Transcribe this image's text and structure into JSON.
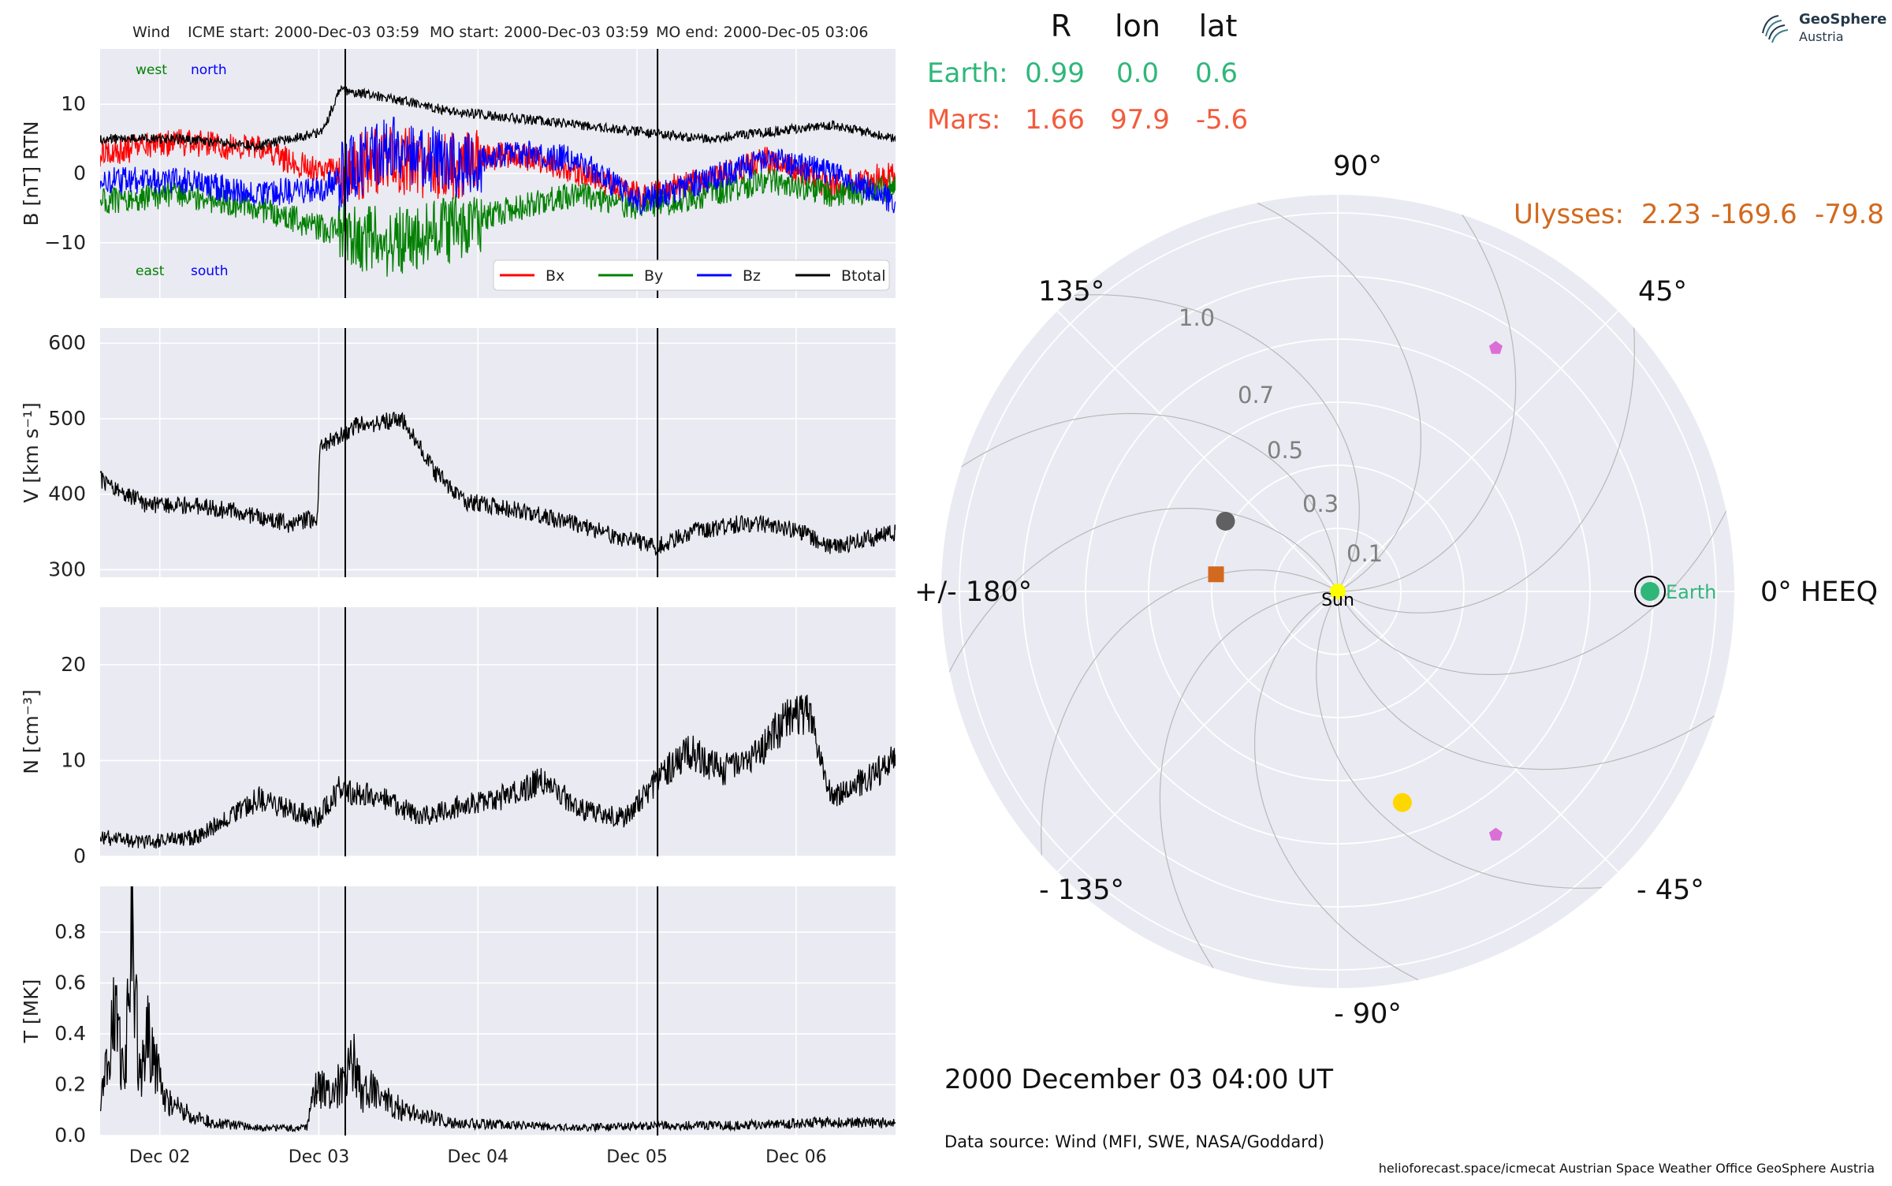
{
  "header": {
    "spacecraft": "Wind",
    "icme_start": "ICME start: 2000-Dec-03 03:59",
    "mo_start": "MO start: 2000-Dec-03 03:59",
    "mo_end": "MO end: 2000-Dec-05 03:06"
  },
  "logo": {
    "title": "GeoSphere",
    "subtitle": "Austria"
  },
  "footer": {
    "timestamp": "2000 December 03  04:00 UT",
    "data_source": "Data source: Wind (MFI, SWE, NASA/Goddard)",
    "credits": "helioforecast.space/icmecat   Austrian Space Weather Office   GeoSphere Austria"
  },
  "positions_table": {
    "headers": [
      "R",
      "lon",
      "lat"
    ],
    "rows": [
      {
        "name": "Earth:",
        "r": "0.99",
        "lon": "0.0",
        "lat": "0.6",
        "color": "#2fb77a"
      },
      {
        "name": "Mars:",
        "r": "1.66",
        "lon": "97.9",
        "lat": "-5.6",
        "color": "#f25c3d"
      }
    ],
    "ulysses": {
      "name": "Ulysses:",
      "r": "2.23",
      "lon": "-169.6",
      "lat": "-79.8",
      "color": "#d2691e"
    }
  },
  "colors": {
    "plot_bg": "#eaeaf2",
    "grid": "#ffffff",
    "bx": "#ff0000",
    "by": "#008000",
    "bz": "#0000ff",
    "btotal": "#000000",
    "earth": "#2fb77a",
    "mars_marker": "#d2691e",
    "sun": "#ffff00",
    "pentagon": "#da70d6",
    "yellow_marker": "#ffd700",
    "grey_marker": "#606060"
  },
  "chart_data": [
    {
      "type": "line",
      "panel": "magnetic_field",
      "ylabel": "B [nT] RTN",
      "ylim": [
        -18,
        18
      ],
      "yticks": [
        10,
        0,
        -10
      ],
      "ytick_labels": [
        "10",
        "0",
        "−10"
      ],
      "xlim_days": [
        "2000-12-01T15:00",
        "2000-12-06T15:00"
      ],
      "events_x": [
        "2000-12-03T03:59",
        "2000-12-05T03:06"
      ],
      "corner_labels": {
        "top_left": "west",
        "top_right": "north",
        "bottom_left": "east",
        "bottom_right": "south"
      },
      "legend": [
        "Bx",
        "By",
        "Bz",
        "Btotal"
      ],
      "series": [
        {
          "name": "Bx",
          "x_days": [
            0,
            0.5,
            1.0,
            1.4,
            1.8,
            2.2,
            2.6,
            3.0,
            3.4,
            3.8,
            4.2,
            4.6,
            5.0
          ],
          "values": [
            3,
            4.5,
            3.5,
            0,
            2,
            1,
            3,
            0,
            -3,
            -1,
            2,
            -2,
            0
          ]
        },
        {
          "name": "By",
          "x_days": [
            0,
            0.5,
            1.0,
            1.4,
            1.8,
            2.2,
            2.6,
            3.0,
            3.4,
            3.8,
            4.2,
            4.6,
            5.0
          ],
          "values": [
            -4,
            -3,
            -5,
            -8,
            -10,
            -8,
            -5,
            -3,
            -5,
            -3,
            -1,
            -3,
            -2
          ]
        },
        {
          "name": "Bz",
          "x_days": [
            0,
            0.5,
            1.0,
            1.4,
            1.8,
            2.2,
            2.6,
            3.0,
            3.4,
            3.8,
            4.2,
            4.6,
            5.0
          ],
          "values": [
            -1,
            -1,
            -3,
            -2,
            4,
            1,
            3,
            2,
            -4,
            -1,
            2,
            0,
            -4
          ]
        },
        {
          "name": "Btotal",
          "x_days": [
            0,
            0.5,
            1.0,
            1.4,
            1.5,
            1.8,
            2.2,
            2.6,
            3.0,
            3.4,
            3.8,
            4.2,
            4.6,
            5.0
          ],
          "values": [
            5,
            5,
            4,
            6,
            12,
            11,
            9,
            8,
            7,
            6,
            5,
            6,
            7,
            5
          ]
        }
      ]
    },
    {
      "type": "line",
      "panel": "speed",
      "ylabel": "V [km s⁻¹]",
      "ylim": [
        290,
        620
      ],
      "yticks": [
        600,
        500,
        400,
        300
      ],
      "series": [
        {
          "name": "V",
          "x_days": [
            0,
            0.3,
            0.6,
            0.9,
            1.2,
            1.37,
            1.38,
            1.6,
            1.9,
            2.1,
            2.3,
            2.6,
            3.0,
            3.3,
            3.5,
            3.7,
            4.0,
            4.2,
            4.4,
            4.6,
            4.8,
            5.0
          ],
          "values": [
            420,
            385,
            385,
            375,
            360,
            370,
            460,
            490,
            500,
            430,
            390,
            380,
            360,
            340,
            330,
            350,
            360,
            360,
            350,
            330,
            340,
            350
          ]
        }
      ]
    },
    {
      "type": "line",
      "panel": "density",
      "ylabel": "N [cm⁻³]",
      "ylim": [
        0,
        26
      ],
      "yticks": [
        20,
        10,
        0
      ],
      "series": [
        {
          "name": "N",
          "x_days": [
            0,
            0.3,
            0.6,
            0.8,
            1.0,
            1.2,
            1.37,
            1.5,
            1.8,
            2.0,
            2.2,
            2.5,
            2.8,
            3.0,
            3.3,
            3.5,
            3.7,
            3.9,
            4.1,
            4.3,
            4.45,
            4.6,
            4.8,
            5.0
          ],
          "values": [
            2,
            1.5,
            2,
            4,
            6,
            5,
            4,
            7,
            6,
            4,
            5,
            6,
            8,
            5,
            4,
            8,
            11,
            9,
            10,
            14,
            15,
            6,
            8,
            10
          ]
        }
      ]
    },
    {
      "type": "line",
      "panel": "temperature",
      "ylabel": "T [MK]",
      "ylim": [
        0,
        0.98
      ],
      "yticks": [
        0.8,
        0.6,
        0.4,
        0.2,
        0.0
      ],
      "ytick_labels": [
        "0.8",
        "0.6",
        "0.4",
        "0.2",
        "0.0"
      ],
      "xtick_labels": [
        "Dec 02",
        "Dec 03",
        "Dec 04",
        "Dec 05",
        "Dec 06"
      ],
      "series": [
        {
          "name": "T",
          "x_days": [
            0,
            0.1,
            0.15,
            0.2,
            0.25,
            0.3,
            0.4,
            0.5,
            0.7,
            1.0,
            1.3,
            1.35,
            1.45,
            1.6,
            1.65,
            1.7,
            1.9,
            2.2,
            2.6,
            3.0,
            3.5,
            4.0,
            4.5,
            5.0
          ],
          "values": [
            0.1,
            0.5,
            0.2,
            0.8,
            0.2,
            0.4,
            0.15,
            0.1,
            0.05,
            0.03,
            0.03,
            0.2,
            0.15,
            0.3,
            0.15,
            0.18,
            0.1,
            0.05,
            0.04,
            0.03,
            0.04,
            0.04,
            0.05,
            0.05
          ]
        }
      ]
    },
    {
      "type": "scatter",
      "panel": "polar_positions",
      "radial_ticks": [
        "0.1",
        "0.3",
        "0.5",
        "0.7",
        "1.0"
      ],
      "angle_labels": [
        "0° HEEQ",
        "45°",
        "90°",
        "135°",
        "+/- 180°",
        "- 135°",
        "- 90°",
        "- 45°"
      ],
      "bodies": [
        {
          "name": "Sun",
          "r": 0.0,
          "lon_deg": 0,
          "marker": "circle"
        },
        {
          "name": "Earth",
          "r": 0.99,
          "lon_deg": 0.0,
          "marker": "circle"
        },
        {
          "name": "",
          "r": 1.66,
          "lon_deg": 97.9,
          "marker": "circle"
        },
        {
          "name": "",
          "r": 0.42,
          "lon_deg": 148,
          "marker": "circle"
        },
        {
          "name": "",
          "r": 0.39,
          "lon_deg": 172,
          "marker": "square"
        },
        {
          "name": "",
          "r": 0.7,
          "lon_deg": -73,
          "marker": "circle"
        },
        {
          "name": "",
          "r": 0.92,
          "lon_deg": 57,
          "marker": "pentagon"
        },
        {
          "name": "",
          "r": 0.92,
          "lon_deg": -57,
          "marker": "pentagon"
        }
      ]
    }
  ]
}
